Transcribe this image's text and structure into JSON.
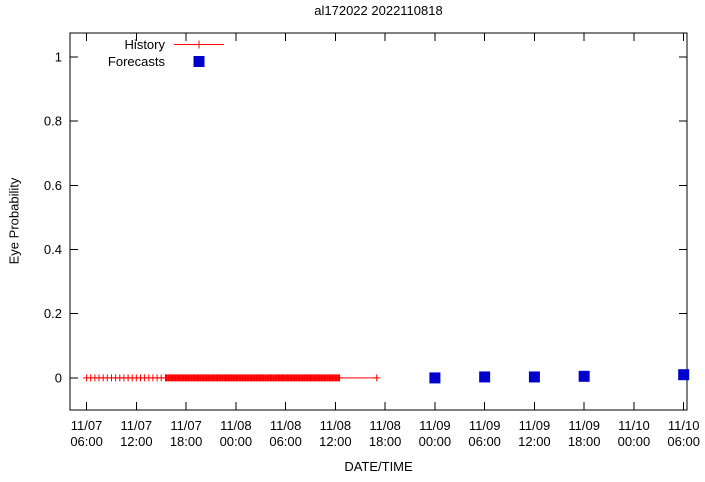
{
  "title": "al172022 2022110818",
  "axes": {
    "xlabel": "DATE/TIME",
    "ylabel": "Eye Probability"
  },
  "legend": {
    "items": [
      {
        "label": "History",
        "color": "#ff0000",
        "marker": "plus-line"
      },
      {
        "label": "Forecasts",
        "color": "#0000cc",
        "marker": "filled-square"
      }
    ]
  },
  "chart_data": {
    "type": "scatter",
    "title": "al172022 2022110818",
    "xlabel": "DATE/TIME",
    "ylabel": "Eye Probability",
    "x_unit": "hours since 11/07 00:00",
    "xlim": [
      4.0,
      78.4
    ],
    "ylim": [
      -0.1,
      1.075
    ],
    "grid": false,
    "legend_position": "top-left-inside",
    "x_ticks": [
      {
        "hour": 6,
        "date": "11/07",
        "time": "06:00"
      },
      {
        "hour": 12,
        "date": "11/07",
        "time": "12:00"
      },
      {
        "hour": 18,
        "date": "11/07",
        "time": "18:00"
      },
      {
        "hour": 24,
        "date": "11/08",
        "time": "00:00"
      },
      {
        "hour": 30,
        "date": "11/08",
        "time": "06:00"
      },
      {
        "hour": 36,
        "date": "11/08",
        "time": "12:00"
      },
      {
        "hour": 42,
        "date": "11/08",
        "time": "18:00"
      },
      {
        "hour": 48,
        "date": "11/09",
        "time": "00:00"
      },
      {
        "hour": 54,
        "date": "11/09",
        "time": "06:00"
      },
      {
        "hour": 60,
        "date": "11/09",
        "time": "12:00"
      },
      {
        "hour": 66,
        "date": "11/09",
        "time": "18:00"
      },
      {
        "hour": 72,
        "date": "11/10",
        "time": "00:00"
      },
      {
        "hour": 78,
        "date": "11/10",
        "time": "06:00"
      }
    ],
    "y_ticks": [
      "0",
      "0.2",
      "0.4",
      "0.6",
      "0.8",
      "1"
    ],
    "y_tick_values": [
      0,
      0.2,
      0.4,
      0.6,
      0.8,
      1
    ],
    "series": [
      {
        "name": "History",
        "color": "#ff0000",
        "style": "linespoints-plus",
        "y_constant": 0,
        "dense_runs": [
          {
            "start_hour": 6,
            "end_hour": 15.5,
            "step_hours": 0.5,
            "y": 0
          },
          {
            "start_hour": 15.5,
            "end_hour": 36.5,
            "step_hours": 0.125,
            "y": 0
          }
        ],
        "tail_points": [
          {
            "hour": 41,
            "y": 0
          }
        ]
      },
      {
        "name": "Forecasts",
        "color": "#0000cc",
        "style": "filled-square",
        "points": [
          {
            "hour": 48,
            "y": 0.0
          },
          {
            "hour": 54,
            "y": 0.003
          },
          {
            "hour": 60,
            "y": 0.003
          },
          {
            "hour": 66,
            "y": 0.005
          },
          {
            "hour": 78,
            "y": 0.01
          }
        ]
      }
    ]
  }
}
